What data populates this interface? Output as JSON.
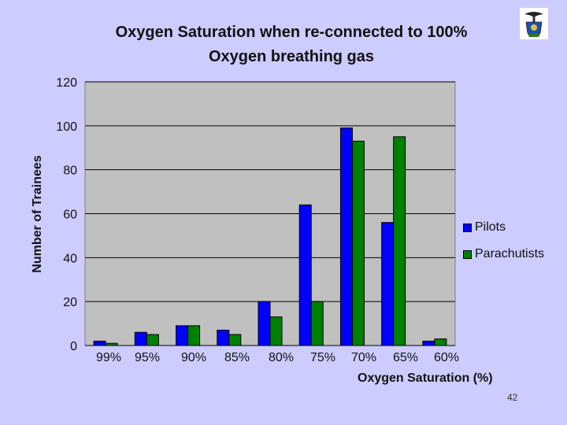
{
  "chart_data": {
    "type": "bar",
    "title_line1": "Oxygen Saturation when re-connected to 100%",
    "title_line2": "Oxygen breathing gas",
    "xlabel": "Oxygen Saturation (%)",
    "ylabel": "Number of Trainees",
    "ylim": [
      0,
      120
    ],
    "yticks": [
      "0",
      "20",
      "40",
      "60",
      "80",
      "100",
      "120"
    ],
    "categories": [
      "99%",
      "95%",
      "90%",
      "85%",
      "80%",
      "75%",
      "70%",
      "65%",
      "60%"
    ],
    "series": [
      {
        "name": "Pilots",
        "color": "#0000ff",
        "values": [
          2,
          6,
          9,
          7,
          20,
          64,
          99,
          56,
          2
        ]
      },
      {
        "name": "Parachutists",
        "color": "#008000",
        "values": [
          1,
          5,
          9,
          5,
          13,
          20,
          93,
          95,
          3
        ]
      }
    ],
    "grid": "horizontal",
    "legend_position": "right"
  },
  "slide_number": "42",
  "logo_icon": "crest-logo-icon",
  "plot_background": "#c0c0c0"
}
